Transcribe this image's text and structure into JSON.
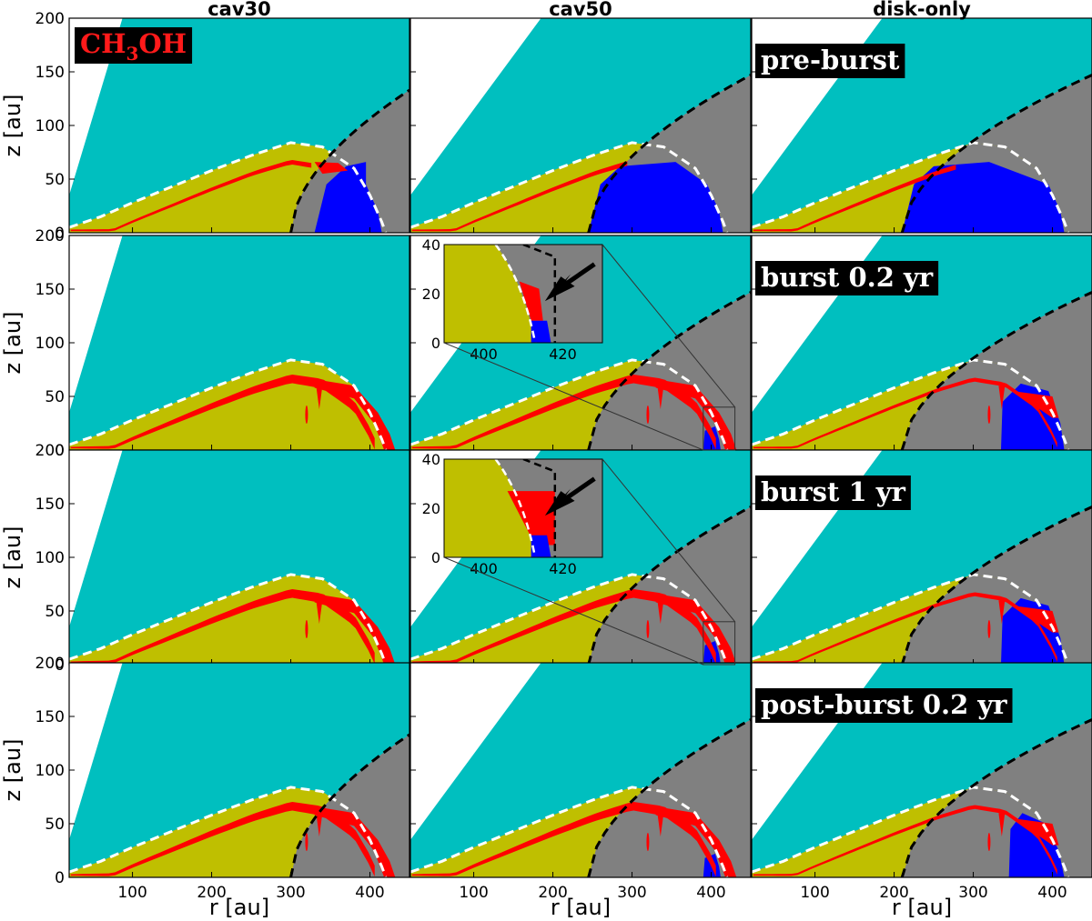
{
  "chart_data": {
    "type": "area",
    "description_words": "grid of panels: rows = stages, columns = models",
    "columns": [
      "cav30",
      "cav50",
      "disk-only"
    ],
    "rows": [
      "pre-burst",
      "burst 0.2 yr",
      "burst 1 yr",
      "post-burst 0.2 yr"
    ],
    "species_label": "CH3OH",
    "xlabel": "r [au]",
    "ylabel": "z [au]",
    "xlim": [
      20,
      450
    ],
    "ylim": [
      0,
      200
    ],
    "xticks": [
      100,
      200,
      300,
      400
    ],
    "yticks": [
      0,
      50,
      100,
      150,
      200
    ],
    "disk_surface": {
      "r": [
        20,
        60,
        100,
        150,
        200,
        250,
        300,
        340,
        380,
        400,
        415,
        420
      ],
      "z": [
        5,
        15,
        28,
        43,
        58,
        72,
        84,
        80,
        60,
        35,
        10,
        0
      ]
    },
    "outflow_wall": {
      "r_base": 20,
      "slope_cav30": 2.45,
      "slope_cav50": 1.0,
      "slope_disk_only": 1.0
    },
    "cavity_boundary_start_r": {
      "cav30": 300,
      "cav50": 245,
      "disk-only": 210
    },
    "inset": {
      "xlim": [
        390,
        430
      ],
      "ylim": [
        0,
        40
      ],
      "xticks": [
        400,
        420
      ],
      "yticks": [
        0,
        20,
        40
      ],
      "rows_with_inset": [
        1,
        2
      ],
      "column": 1
    },
    "colors": {
      "outflow": "#00bfbf",
      "disk": "#bfbf00",
      "envelope": "#808080",
      "methanol": "#ff0000",
      "ice": "#0000ff",
      "background": "#ffffff"
    }
  },
  "col_titles": [
    "cav30",
    "cav50",
    "disk-only"
  ],
  "row_tags": [
    "pre-burst",
    "burst 0.2 yr",
    "burst 1 yr",
    "post-burst 0.2 yr"
  ],
  "species_main": "CH",
  "species_sub": "3",
  "species_end": "OH",
  "axes": {
    "xlabel": "r [au]",
    "ylabel": "z [au]"
  }
}
